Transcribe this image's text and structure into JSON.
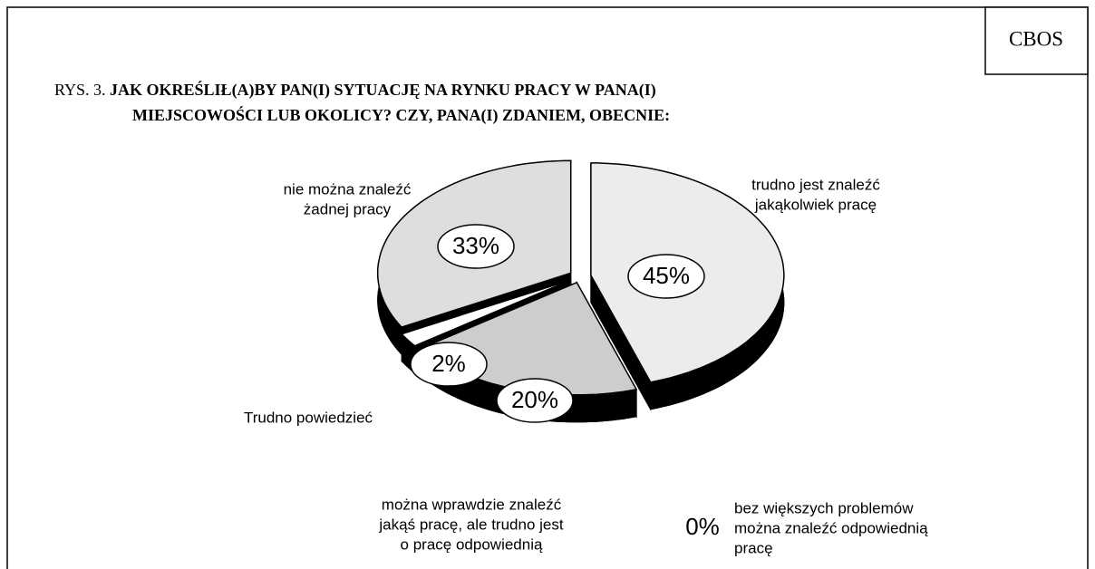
{
  "badge": "CBOS",
  "chart_data": {
    "type": "pie",
    "title_prefix": "RYS. 3.",
    "title": [
      "JAK OKREŚLIŁ(A)BY PAN(I) SYTUACJĘ NA RYNKU PRACY W PANA(I)",
      "MIEJSCOWOŚCI LUB OKOLICY? CZY, PANA(I) ZDANIEM, OBECNIE:"
    ],
    "categories": [
      [
        "trudno jest znaleźć",
        "jakąkolwiek pracę"
      ],
      [
        "bez większych problemów",
        "można znaleźć odpowiednią",
        "pracę"
      ],
      [
        "można wprawdzie znaleźć",
        "jakąś pracę, ale trudno jest",
        "o pracę odpowiednią"
      ],
      [
        "Trudno powiedzieć"
      ],
      [
        "nie można znaleźć",
        "żadnej pracy"
      ]
    ],
    "values": [
      45,
      0,
      20,
      2,
      33
    ],
    "value_labels": [
      "45%",
      "0%",
      "20%",
      "2%",
      "33%"
    ],
    "colors": [
      "#ececec",
      "#ffffff",
      "#cdcdcd",
      "#ffffff",
      "#dedede"
    ]
  }
}
